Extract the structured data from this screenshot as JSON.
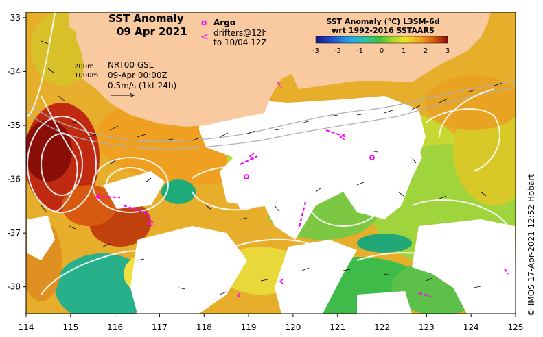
{
  "title": {
    "line1": "SST Anomaly",
    "line2": "09 Apr 2021"
  },
  "legend": {
    "argo_symbol": "o",
    "argo_label": "Argo",
    "drifter_symbol": "<",
    "drifter_label1": "drifters@12h",
    "drifter_label2": "to 10/04 12Z",
    "marker_color": "#ff00ff"
  },
  "info": {
    "contour1": "200m",
    "contour2": "1000m",
    "product": "NRT00 GSL",
    "time": "09-Apr 00:00Z",
    "vector_scale": "0.5m/s (1kt 24h)"
  },
  "colorbar": {
    "title1": "SST Anomaly (°C) L3SM-6d",
    "title2": "wrt 1992-2016 SSTAARS",
    "ticks": [
      "-3",
      "-2",
      "-1",
      "0",
      "1",
      "2",
      "3"
    ],
    "min": -3,
    "max": 3
  },
  "axes": {
    "x_ticks": [
      "114",
      "115",
      "116",
      "117",
      "118",
      "119",
      "120",
      "121",
      "122",
      "123",
      "124",
      "125"
    ],
    "y_ticks": [
      "-33",
      "-34",
      "-35",
      "-36",
      "-37",
      "-38"
    ],
    "lon_range": [
      114,
      125
    ],
    "lat_range": [
      -38.5,
      -32.9
    ]
  },
  "credit": "© IMOS 17-Apr-2021 12:52 Hobart",
  "colors": {
    "land": "#f9c9a0",
    "no_data": "#ffffff",
    "ssh_contour": "#ffffff",
    "bathy_contour": "#b0b0b0",
    "vector": "#000000"
  },
  "argo_floats": [
    {
      "lon": 119.0,
      "lat": -36.0
    },
    {
      "lon": 121.8,
      "lat": -35.65
    }
  ]
}
